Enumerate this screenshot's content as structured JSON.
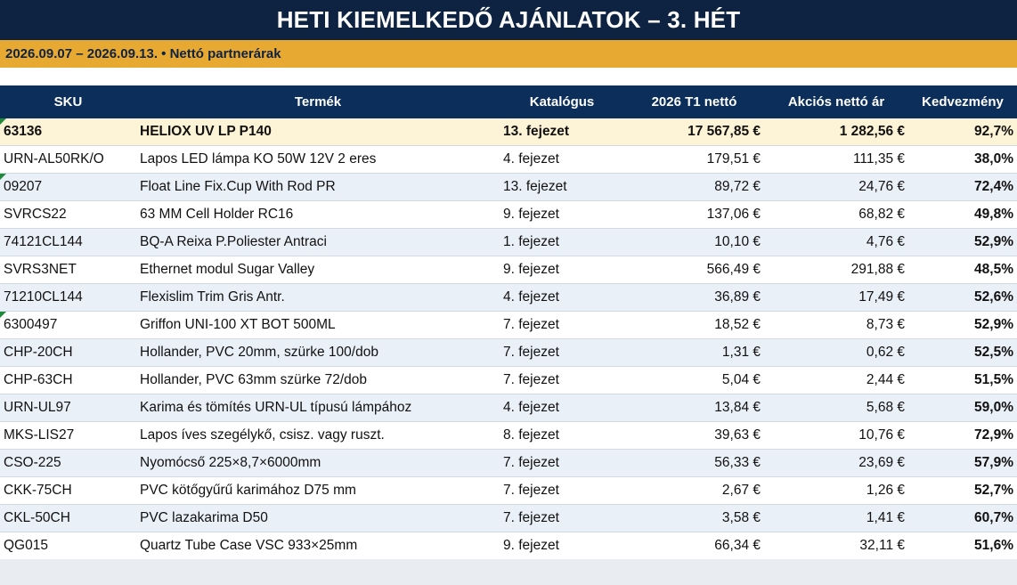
{
  "title": "HETI KIEMELKEDŐ AJÁNLATOK – 3. HÉT",
  "subtitle": "2026.09.07 – 2026.09.13. • Nettó partnerárak",
  "columns": [
    "SKU",
    "Termék",
    "Katalógus",
    "2026 T1 nettó",
    "Akciós nettó ár",
    "Kedvezmény"
  ],
  "rows": [
    {
      "sku": "63136",
      "product": "HELIOX UV LP P140",
      "catalog": "13. fejezet",
      "t1": "17 567,85 €",
      "promo": "1 282,56 €",
      "discount": "92,7%",
      "highlight": true,
      "flag": true
    },
    {
      "sku": "URN-AL50RK/O",
      "product": "Lapos LED lámpa KO 50W 12V 2 eres",
      "catalog": "4. fejezet",
      "t1": "179,51 €",
      "promo": "111,35 €",
      "discount": "38,0%"
    },
    {
      "sku": "09207",
      "product": "Float Line Fix.Cup With Rod PR",
      "catalog": "13. fejezet",
      "t1": "89,72 €",
      "promo": "24,76 €",
      "discount": "72,4%",
      "flag": true
    },
    {
      "sku": "SVRCS22",
      "product": "63 MM Cell Holder RC16",
      "catalog": "9. fejezet",
      "t1": "137,06 €",
      "promo": "68,82 €",
      "discount": "49,8%"
    },
    {
      "sku": "74121CL144",
      "product": "BQ-A Reixa P.Poliester Antraci",
      "catalog": "1. fejezet",
      "t1": "10,10 €",
      "promo": "4,76 €",
      "discount": "52,9%"
    },
    {
      "sku": "SVRS3NET",
      "product": "Ethernet modul Sugar Valley",
      "catalog": "9. fejezet",
      "t1": "566,49 €",
      "promo": "291,88 €",
      "discount": "48,5%"
    },
    {
      "sku": "71210CL144",
      "product": "Flexislim Trim Gris Antr.",
      "catalog": "4. fejezet",
      "t1": "36,89 €",
      "promo": "17,49 €",
      "discount": "52,6%"
    },
    {
      "sku": "6300497",
      "product": "Griffon UNI-100 XT BOT 500ML",
      "catalog": "7. fejezet",
      "t1": "18,52 €",
      "promo": "8,73 €",
      "discount": "52,9%",
      "flag": true
    },
    {
      "sku": "CHP-20CH",
      "product": "Hollander, PVC 20mm, szürke 100/dob",
      "catalog": "7. fejezet",
      "t1": "1,31 €",
      "promo": "0,62 €",
      "discount": "52,5%"
    },
    {
      "sku": "CHP-63CH",
      "product": "Hollander, PVC 63mm szürke 72/dob",
      "catalog": "7. fejezet",
      "t1": "5,04 €",
      "promo": "2,44 €",
      "discount": "51,5%"
    },
    {
      "sku": "URN-UL97",
      "product": "Karima és tömítés URN-UL típusú lámpához",
      "catalog": "4. fejezet",
      "t1": "13,84 €",
      "promo": "5,68 €",
      "discount": "59,0%"
    },
    {
      "sku": "MKS-LIS27",
      "product": "Lapos íves szegélykő, csisz. vagy ruszt.",
      "catalog": "8. fejezet",
      "t1": "39,63 €",
      "promo": "10,76 €",
      "discount": "72,9%"
    },
    {
      "sku": "CSO-225",
      "product": "Nyomócső 225×8,7×6000mm",
      "catalog": "7. fejezet",
      "t1": "56,33 €",
      "promo": "23,69 €",
      "discount": "57,9%"
    },
    {
      "sku": "CKK-75CH",
      "product": "PVC kötőgyűrű karimához D75 mm",
      "catalog": "7. fejezet",
      "t1": "2,67 €",
      "promo": "1,26 €",
      "discount": "52,7%"
    },
    {
      "sku": "CKL-50CH",
      "product": "PVC lazakarima D50",
      "catalog": "7. fejezet",
      "t1": "3,58 €",
      "promo": "1,41 €",
      "discount": "60,7%"
    },
    {
      "sku": "QG015",
      "product": "Quartz Tube Case VSC 933×25mm",
      "catalog": "9. fejezet",
      "t1": "66,34 €",
      "promo": "32,11 €",
      "discount": "51,6%"
    }
  ],
  "colors": {
    "title_bg": "#0e2241",
    "subtitle_bg": "#e8a933",
    "header_bg": "#0b2e5b",
    "highlight_row": "#fdf3d6",
    "alt_row": "#eaf0f7",
    "cell_flag": "#1f8a3a"
  }
}
